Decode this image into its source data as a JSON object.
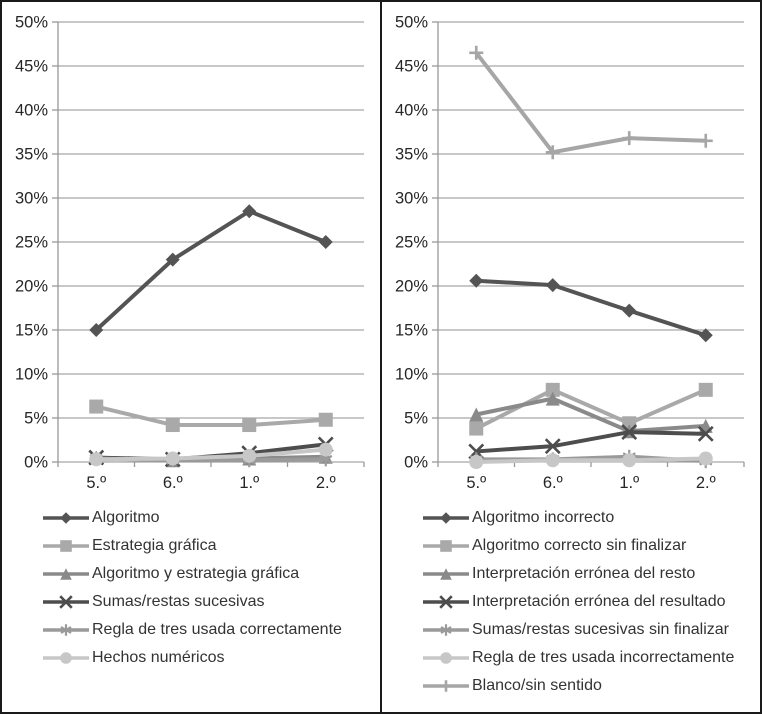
{
  "figure": {
    "background": "#ffffff",
    "border_color": "#1a1a1a",
    "grid_color": "#a6a6a6",
    "axis_color": "#999999",
    "tick_label_color": "#262626"
  },
  "chart_data": [
    {
      "name": "resolution-strategies",
      "type": "line",
      "title": "",
      "xlabel": "",
      "ylabel": "",
      "categories": [
        "5.º",
        "6.º",
        "1.º",
        "2.º"
      ],
      "ylim": [
        0,
        50
      ],
      "y_step": 5,
      "grid": true,
      "legend_position": "bottom",
      "y_ticks": [
        "50%",
        "45%",
        "40%",
        "35%",
        "30%",
        "25%",
        "20%",
        "15%",
        "10%",
        "5%",
        "0%"
      ],
      "series": [
        {
          "name": "Algoritmo",
          "marker": "diamond",
          "color": "#545454",
          "values": [
            15.0,
            23.0,
            28.5,
            25.0
          ]
        },
        {
          "name": "Estrategia gráfica",
          "marker": "square",
          "color": "#a9a9a9",
          "values": [
            6.3,
            4.2,
            4.2,
            4.8
          ]
        },
        {
          "name": "Algoritmo y estrategia gráfica",
          "marker": "triangle",
          "color": "#8a8a8a",
          "values": [
            0.5,
            0.2,
            0.4,
            0.6
          ]
        },
        {
          "name": "Sumas/restas sucesivas",
          "marker": "x",
          "color": "#4d4d4d",
          "values": [
            0.5,
            0.3,
            1.0,
            2.0
          ]
        },
        {
          "name": "Regla de tres usada correctamente",
          "marker": "asterisk",
          "color": "#9a9a9a",
          "values": [
            0.4,
            0.2,
            0.2,
            0.3
          ]
        },
        {
          "name": "Hechos numéricos",
          "marker": "circle",
          "color": "#c7c7c7",
          "values": [
            0.3,
            0.4,
            0.7,
            1.4
          ]
        }
      ]
    },
    {
      "name": "error-types",
      "type": "line",
      "title": "",
      "xlabel": "",
      "ylabel": "",
      "categories": [
        "5.º",
        "6.º",
        "1.º",
        "2.º"
      ],
      "ylim": [
        0,
        50
      ],
      "y_step": 5,
      "grid": true,
      "legend_position": "bottom",
      "y_ticks": [
        "50%",
        "45%",
        "40%",
        "35%",
        "30%",
        "25%",
        "20%",
        "15%",
        "10%",
        "5%",
        "0%"
      ],
      "series": [
        {
          "name": "Algoritmo incorrecto",
          "marker": "diamond",
          "color": "#545454",
          "values": [
            20.6,
            20.1,
            17.2,
            14.4
          ]
        },
        {
          "name": "Algoritmo correcto sin finalizar",
          "marker": "square",
          "color": "#a9a9a9",
          "values": [
            3.8,
            8.2,
            4.4,
            8.2
          ]
        },
        {
          "name": "Interpretación errónea del resto",
          "marker": "triangle",
          "color": "#8a8a8a",
          "values": [
            5.4,
            7.2,
            3.5,
            4.1
          ]
        },
        {
          "name": "Interpretación errónea del resultado",
          "marker": "x",
          "color": "#4d4d4d",
          "values": [
            1.2,
            1.8,
            3.4,
            3.2
          ]
        },
        {
          "name": "Sumas/restas sucesivas sin finalizar",
          "marker": "asterisk",
          "color": "#9a9a9a",
          "values": [
            0.3,
            0.3,
            0.6,
            0.1
          ]
        },
        {
          "name": "Regla de tres usada incorrectamente",
          "marker": "circle",
          "color": "#c7c7c7",
          "values": [
            0.0,
            0.2,
            0.2,
            0.4
          ]
        },
        {
          "name": "Blanco/sin sentido",
          "marker": "plus",
          "color": "#a6a6a6",
          "values": [
            46.5,
            35.2,
            36.8,
            36.5
          ]
        }
      ]
    }
  ]
}
